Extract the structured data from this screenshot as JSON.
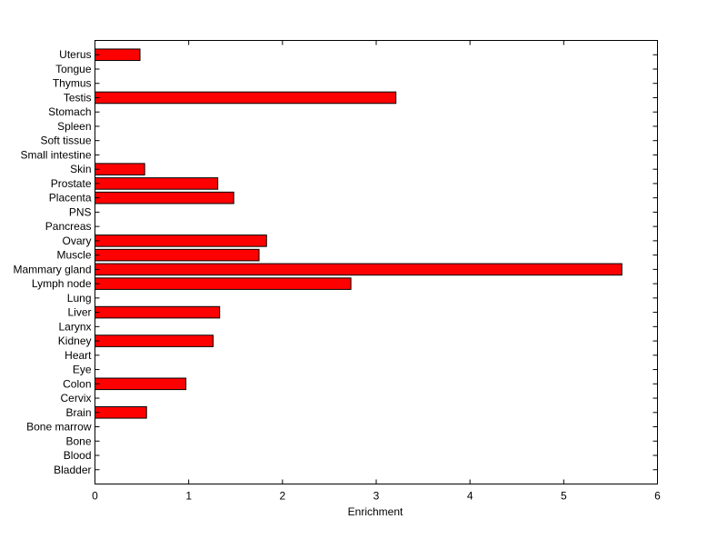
{
  "chart_data": {
    "type": "bar",
    "orientation": "horizontal",
    "title": "",
    "xlabel": "Enrichment",
    "ylabel": "",
    "xlim": [
      0,
      6
    ],
    "x_ticks": [
      "0",
      "1",
      "2",
      "3",
      "4",
      "5",
      "6"
    ],
    "grid": false,
    "categories": [
      "Bladder",
      "Blood",
      "Bone",
      "Bone marrow",
      "Brain",
      "Cervix",
      "Colon",
      "Eye",
      "Heart",
      "Kidney",
      "Larynx",
      "Liver",
      "Lung",
      "Lymph node",
      "Mammary gland",
      "Muscle",
      "Ovary",
      "Pancreas",
      "PNS",
      "Placenta",
      "Prostate",
      "Skin",
      "Small intestine",
      "Soft tissue",
      "Spleen",
      "Stomach",
      "Testis",
      "Thymus",
      "Tongue",
      "Uterus"
    ],
    "values": [
      0,
      0,
      0,
      0,
      0.55,
      0,
      0.97,
      0,
      0,
      1.26,
      0,
      1.33,
      0,
      2.73,
      5.62,
      1.75,
      1.83,
      0,
      0,
      1.48,
      1.31,
      0.53,
      0,
      0,
      0,
      0,
      3.21,
      0,
      0,
      0.48
    ],
    "bar_color": "#ff0000",
    "edge_color": "#000000"
  }
}
